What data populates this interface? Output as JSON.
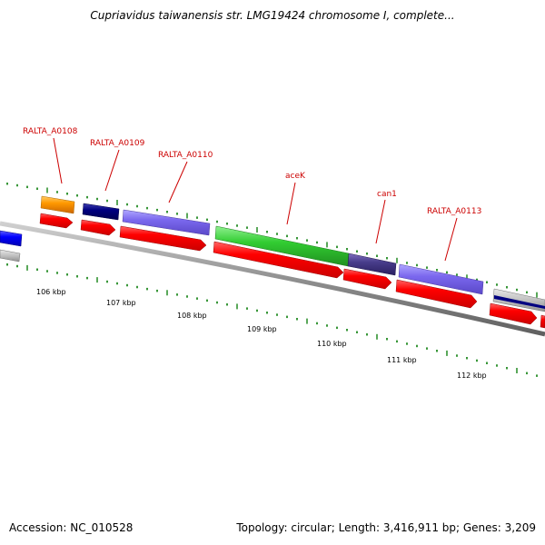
{
  "title": "Cupriavidus taiwanensis str. LMG19424 chromosome I, complete...",
  "footer": {
    "accession": "Accession: NC_010528",
    "summary": "Topology: circular; Length: 3,416,911 bp; Genes: 3,209"
  },
  "gene_labels": [
    "RALTA_A0108",
    "RALTA_A0109",
    "RALTA_A0110",
    "aceK",
    "can1",
    "RALTA_A0113"
  ],
  "kbp_labels": [
    "106 kbp",
    "107 kbp",
    "108 kbp",
    "109 kbp",
    "110 kbp",
    "111 kbp",
    "112 kbp"
  ],
  "colors": {
    "cds": "#ff0000",
    "label": "#cc0000",
    "tick": "#228b22",
    "backbone": "#808080",
    "orange_feature": "#ff9900",
    "navy_feature": "#000080",
    "slate_feature": "#7b68ee",
    "green_feature": "#32cd32",
    "dark_slate_feature": "#483d8b",
    "blue_feature": "#0000ff"
  }
}
